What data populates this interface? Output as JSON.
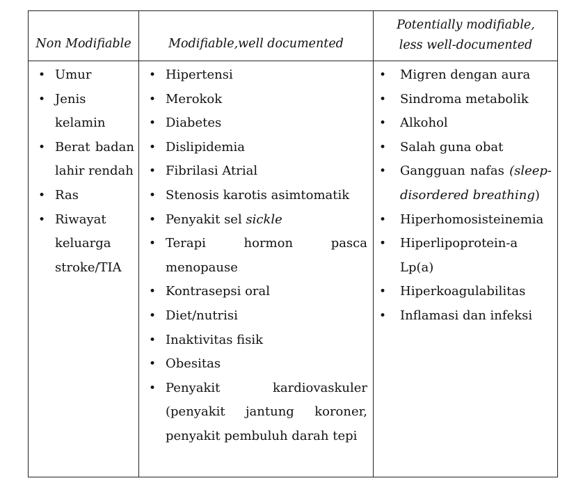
{
  "columns": [
    {
      "header_lines": [
        "Non Modifiable"
      ],
      "items": [
        {
          "text": "Umur"
        },
        {
          "text": "Jenis kelamin"
        },
        {
          "text": "Berat badan lahir rendah"
        },
        {
          "text": "Ras"
        },
        {
          "text": "Riwayat keluarga stroke/TIA"
        }
      ]
    },
    {
      "header_lines": [
        "Modifiable,well documented"
      ],
      "items": [
        {
          "text": "Hipertensi"
        },
        {
          "text": "Merokok"
        },
        {
          "text": "Diabetes"
        },
        {
          "text": "Dislipidemia"
        },
        {
          "text": "Fibrilasi Atrial"
        },
        {
          "text": "Stenosis karotis asimtomatik"
        },
        {
          "text": "Penyakit sel ",
          "italic": "sickle"
        },
        {
          "text": "Terapi hormon pasca menopause"
        },
        {
          "text": "Kontrasepsi oral"
        },
        {
          "text": "Diet/nutrisi"
        },
        {
          "text": "Inaktivitas fisik"
        },
        {
          "text": "Obesitas"
        },
        {
          "text": "Penyakit kardiovaskuler (penyakit jantung koroner, penyakit pembuluh darah tepi"
        }
      ]
    },
    {
      "header_lines": [
        "Potentially modifiable,",
        "less well-documented"
      ],
      "items": [
        {
          "text": "Migren dengan aura"
        },
        {
          "text": "Sindroma metabolik"
        },
        {
          "text": "Alkohol"
        },
        {
          "text": "Salah guna obat"
        },
        {
          "text": "Gangguan nafas ",
          "italic": "(sleep-disordered breathing",
          "after": ")"
        },
        {
          "text": "Hiperhomosisteinemia"
        },
        {
          "text": "Hiperlipoprotein-a Lp(a)"
        },
        {
          "text": "Hiperkoagulabilitas"
        },
        {
          "text": "Inflamasi dan infeksi"
        }
      ]
    }
  ]
}
